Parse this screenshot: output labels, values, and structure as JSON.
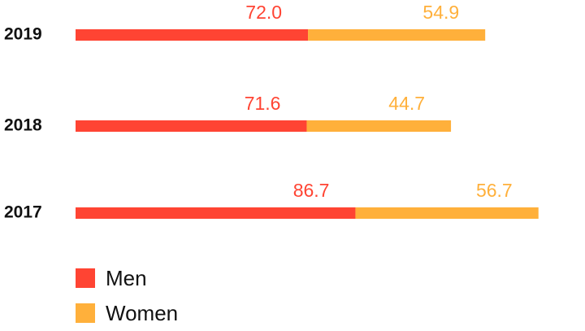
{
  "chart_data": {
    "type": "stacked-bar-horizontal",
    "categories": [
      "2019",
      "2018",
      "2017"
    ],
    "series": [
      {
        "name": "Men",
        "color": "#ff4433",
        "values": [
          72.0,
          71.6,
          86.7
        ],
        "value_labels": [
          "72.0",
          "71.6",
          "86.7"
        ]
      },
      {
        "name": "Women",
        "color": "#ffb03b",
        "values": [
          54.9,
          44.7,
          56.7
        ],
        "value_labels": [
          "54.9",
          "44.7",
          "56.7"
        ]
      }
    ]
  }
}
